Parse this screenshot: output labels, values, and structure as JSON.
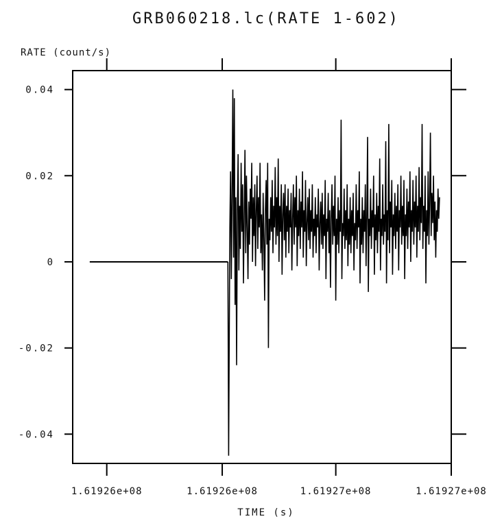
{
  "chart_data": {
    "type": "line",
    "title": "GRB060218.lc(RATE 1-602)",
    "xlabel": "TIME (s)",
    "ylabel": "RATE (count/s)",
    "x_tick_labels": [
      "1.61926e+08",
      "1.61926e+08",
      "1.61927e+08",
      "1.61927e+08"
    ],
    "x_tick_positions": [
      0.09,
      0.395,
      0.695,
      1.0
    ],
    "y_ticks": [
      -0.04,
      -0.02,
      0,
      0.02,
      0.04
    ],
    "y_tick_labels": [
      "-0.04",
      "-0.02",
      "0",
      "0.02",
      "0.04"
    ],
    "xlim": [
      0,
      1
    ],
    "ylim": [
      -0.0468,
      0.0444
    ],
    "grid": false,
    "line_color": "#000000",
    "series": [
      {
        "flat_segment": {
          "x": [
            0.045,
            0.41
          ],
          "y": [
            0,
            0
          ]
        },
        "points": [
          [
            0.41,
            0.0
          ],
          [
            0.412,
            -0.045
          ],
          [
            0.415,
            0.007
          ],
          [
            0.417,
            0.021
          ],
          [
            0.419,
            -0.004
          ],
          [
            0.421,
            0.016
          ],
          [
            0.423,
            0.04
          ],
          [
            0.425,
            0.001
          ],
          [
            0.427,
            0.038
          ],
          [
            0.429,
            -0.01
          ],
          [
            0.431,
            0.015
          ],
          [
            0.433,
            -0.024
          ],
          [
            0.435,
            0.012
          ],
          [
            0.437,
            0.025
          ],
          [
            0.439,
            -0.002
          ],
          [
            0.441,
            0.013
          ],
          [
            0.443,
            0.003
          ],
          [
            0.445,
            0.023
          ],
          [
            0.447,
            0.007
          ],
          [
            0.449,
            0.018
          ],
          [
            0.451,
            -0.005
          ],
          [
            0.453,
            0.011
          ],
          [
            0.455,
            0.026
          ],
          [
            0.457,
            0.002
          ],
          [
            0.459,
            0.02
          ],
          [
            0.461,
            0.008
          ],
          [
            0.463,
            -0.004
          ],
          [
            0.465,
            0.014
          ],
          [
            0.467,
            0.004
          ],
          [
            0.469,
            0.017
          ],
          [
            0.471,
            0.01
          ],
          [
            0.473,
            0.023
          ],
          [
            0.475,
            0.0
          ],
          [
            0.477,
            0.015
          ],
          [
            0.479,
            0.006
          ],
          [
            0.481,
            0.018
          ],
          [
            0.483,
            -0.001
          ],
          [
            0.485,
            0.012
          ],
          [
            0.487,
            0.02
          ],
          [
            0.489,
            0.003
          ],
          [
            0.491,
            0.015
          ],
          [
            0.493,
            0.008
          ],
          [
            0.495,
            0.023
          ],
          [
            0.497,
            0.002
          ],
          [
            0.499,
            0.011
          ],
          [
            0.501,
            -0.002
          ],
          [
            0.503,
            0.016
          ],
          [
            0.505,
            0.005
          ],
          [
            0.507,
            -0.009
          ],
          [
            0.509,
            0.012
          ],
          [
            0.511,
            0.019
          ],
          [
            0.513,
            0.004
          ],
          [
            0.515,
            0.023
          ],
          [
            0.517,
            -0.02
          ],
          [
            0.519,
            0.01
          ],
          [
            0.521,
            0.005
          ],
          [
            0.523,
            0.015
          ],
          [
            0.525,
            0.007
          ],
          [
            0.527,
            0.019
          ],
          [
            0.529,
            0.002
          ],
          [
            0.531,
            0.013
          ],
          [
            0.533,
            0.008
          ],
          [
            0.535,
            0.022
          ],
          [
            0.537,
            0.004
          ],
          [
            0.539,
            0.015
          ],
          [
            0.541,
            0.006
          ],
          [
            0.543,
            0.024
          ],
          [
            0.545,
            0.0
          ],
          [
            0.547,
            0.013
          ],
          [
            0.549,
            0.007
          ],
          [
            0.551,
            0.018
          ],
          [
            0.553,
            -0.003
          ],
          [
            0.555,
            0.011
          ],
          [
            0.557,
            0.016
          ],
          [
            0.559,
            0.005
          ],
          [
            0.561,
            0.018
          ],
          [
            0.563,
            0.001
          ],
          [
            0.565,
            0.013
          ],
          [
            0.567,
            0.007
          ],
          [
            0.569,
            0.017
          ],
          [
            0.571,
            0.002
          ],
          [
            0.573,
            0.012
          ],
          [
            0.575,
            0.008
          ],
          [
            0.577,
            0.016
          ],
          [
            0.579,
            -0.002
          ],
          [
            0.581,
            0.01
          ],
          [
            0.583,
            0.018
          ],
          [
            0.585,
            0.004
          ],
          [
            0.587,
            0.015
          ],
          [
            0.589,
            0.008
          ],
          [
            0.591,
            0.02
          ],
          [
            0.593,
            -0.001
          ],
          [
            0.595,
            0.012
          ],
          [
            0.597,
            0.006
          ],
          [
            0.599,
            0.017
          ],
          [
            0.601,
            0.003
          ],
          [
            0.603,
            0.014
          ],
          [
            0.605,
            0.008
          ],
          [
            0.607,
            0.021
          ],
          [
            0.609,
            0.001
          ],
          [
            0.611,
            0.012
          ],
          [
            0.613,
            0.007
          ],
          [
            0.615,
            0.019
          ],
          [
            0.617,
            -0.001
          ],
          [
            0.619,
            0.009
          ],
          [
            0.621,
            0.015
          ],
          [
            0.623,
            0.005
          ],
          [
            0.625,
            0.017
          ],
          [
            0.627,
            0.003
          ],
          [
            0.629,
            0.012
          ],
          [
            0.631,
            0.007
          ],
          [
            0.633,
            0.018
          ],
          [
            0.635,
            0.001
          ],
          [
            0.637,
            0.01
          ],
          [
            0.639,
            0.006
          ],
          [
            0.641,
            0.015
          ],
          [
            0.643,
            0.002
          ],
          [
            0.645,
            0.011
          ],
          [
            0.647,
            0.008
          ],
          [
            0.649,
            0.017
          ],
          [
            0.651,
            -0.002
          ],
          [
            0.653,
            0.009
          ],
          [
            0.655,
            0.014
          ],
          [
            0.657,
            0.004
          ],
          [
            0.659,
            0.016
          ],
          [
            0.661,
            0.003
          ],
          [
            0.663,
            0.011
          ],
          [
            0.665,
            0.006
          ],
          [
            0.667,
            0.019
          ],
          [
            0.669,
            -0.004
          ],
          [
            0.671,
            0.01
          ],
          [
            0.673,
            0.007
          ],
          [
            0.675,
            0.016
          ],
          [
            0.677,
            0.002
          ],
          [
            0.679,
            0.012
          ],
          [
            0.681,
            -0.006
          ],
          [
            0.683,
            0.01
          ],
          [
            0.685,
            0.018
          ],
          [
            0.687,
            0.004
          ],
          [
            0.689,
            0.013
          ],
          [
            0.691,
            0.006
          ],
          [
            0.693,
            0.02
          ],
          [
            0.695,
            -0.009
          ],
          [
            0.697,
            0.01
          ],
          [
            0.699,
            0.004
          ],
          [
            0.701,
            0.015
          ],
          [
            0.703,
            0.002
          ],
          [
            0.705,
            0.012
          ],
          [
            0.707,
            0.007
          ],
          [
            0.709,
            0.033
          ],
          [
            0.711,
            -0.004
          ],
          [
            0.713,
            0.009
          ],
          [
            0.715,
            0.006
          ],
          [
            0.717,
            0.017
          ],
          [
            0.719,
            0.003
          ],
          [
            0.721,
            0.012
          ],
          [
            0.723,
            0.005
          ],
          [
            0.725,
            0.018
          ],
          [
            0.727,
            -0.001
          ],
          [
            0.729,
            0.01
          ],
          [
            0.731,
            0.004
          ],
          [
            0.733,
            0.015
          ],
          [
            0.735,
            0.002
          ],
          [
            0.737,
            0.012
          ],
          [
            0.739,
            0.006
          ],
          [
            0.741,
            0.016
          ],
          [
            0.743,
            -0.002
          ],
          [
            0.745,
            0.009
          ],
          [
            0.747,
            0.005
          ],
          [
            0.749,
            0.018
          ],
          [
            0.751,
            0.003
          ],
          [
            0.753,
            0.012
          ],
          [
            0.755,
            0.008
          ],
          [
            0.757,
            0.021
          ],
          [
            0.759,
            -0.005
          ],
          [
            0.761,
            0.01
          ],
          [
            0.763,
            0.004
          ],
          [
            0.765,
            0.015
          ],
          [
            0.767,
            0.002
          ],
          [
            0.769,
            0.012
          ],
          [
            0.771,
            0.007
          ],
          [
            0.773,
            0.018
          ],
          [
            0.775,
            -0.001
          ],
          [
            0.777,
            0.011
          ],
          [
            0.779,
            0.029
          ],
          [
            0.781,
            -0.007
          ],
          [
            0.783,
            0.01
          ],
          [
            0.785,
            0.006
          ],
          [
            0.787,
            0.017
          ],
          [
            0.789,
            0.003
          ],
          [
            0.791,
            0.012
          ],
          [
            0.793,
            0.008
          ],
          [
            0.795,
            0.02
          ],
          [
            0.797,
            -0.003
          ],
          [
            0.799,
            0.011
          ],
          [
            0.801,
            0.005
          ],
          [
            0.803,
            0.016
          ],
          [
            0.805,
            0.002
          ],
          [
            0.807,
            0.013
          ],
          [
            0.809,
            0.007
          ],
          [
            0.811,
            0.024
          ],
          [
            0.813,
            -0.002
          ],
          [
            0.815,
            0.01
          ],
          [
            0.817,
            0.006
          ],
          [
            0.819,
            0.018
          ],
          [
            0.821,
            0.004
          ],
          [
            0.823,
            0.011
          ],
          [
            0.825,
            0.007
          ],
          [
            0.827,
            0.028
          ],
          [
            0.829,
            -0.005
          ],
          [
            0.831,
            0.012
          ],
          [
            0.833,
            0.005
          ],
          [
            0.835,
            0.032
          ],
          [
            0.837,
            0.002
          ],
          [
            0.839,
            0.014
          ],
          [
            0.841,
            0.008
          ],
          [
            0.843,
            0.019
          ],
          [
            0.845,
            -0.003
          ],
          [
            0.847,
            0.011
          ],
          [
            0.849,
            0.006
          ],
          [
            0.851,
            0.016
          ],
          [
            0.853,
            0.003
          ],
          [
            0.855,
            0.013
          ],
          [
            0.857,
            0.007
          ],
          [
            0.859,
            0.018
          ],
          [
            0.861,
            -0.002
          ],
          [
            0.863,
            0.012
          ],
          [
            0.865,
            0.008
          ],
          [
            0.867,
            0.02
          ],
          [
            0.869,
            0.004
          ],
          [
            0.871,
            0.013
          ],
          [
            0.873,
            0.006
          ],
          [
            0.875,
            0.019
          ],
          [
            0.877,
            -0.004
          ],
          [
            0.879,
            0.011
          ],
          [
            0.881,
            0.006
          ],
          [
            0.883,
            0.017
          ],
          [
            0.885,
            0.003
          ],
          [
            0.887,
            0.014
          ],
          [
            0.889,
            0.008
          ],
          [
            0.891,
            0.021
          ],
          [
            0.893,
            0.0
          ],
          [
            0.895,
            0.012
          ],
          [
            0.897,
            0.007
          ],
          [
            0.899,
            0.019
          ],
          [
            0.901,
            0.004
          ],
          [
            0.903,
            0.014
          ],
          [
            0.905,
            0.008
          ],
          [
            0.907,
            0.02
          ],
          [
            0.909,
            0.001
          ],
          [
            0.911,
            0.013
          ],
          [
            0.913,
            0.007
          ],
          [
            0.915,
            0.022
          ],
          [
            0.917,
            0.005
          ],
          [
            0.919,
            0.015
          ],
          [
            0.921,
            0.009
          ],
          [
            0.923,
            0.032
          ],
          [
            0.925,
            0.003
          ],
          [
            0.927,
            0.013
          ],
          [
            0.929,
            0.007
          ],
          [
            0.931,
            0.02
          ],
          [
            0.933,
            -0.005
          ],
          [
            0.935,
            0.012
          ],
          [
            0.937,
            0.006
          ],
          [
            0.939,
            0.021
          ],
          [
            0.941,
            0.004
          ],
          [
            0.943,
            0.014
          ],
          [
            0.945,
            0.03
          ],
          [
            0.947,
            0.006
          ],
          [
            0.949,
            0.016
          ],
          [
            0.951,
            0.009
          ],
          [
            0.953,
            0.02
          ],
          [
            0.955,
            0.005
          ],
          [
            0.957,
            0.014
          ],
          [
            0.959,
            0.001
          ],
          [
            0.961,
            0.012
          ],
          [
            0.963,
            0.007
          ],
          [
            0.965,
            0.017
          ],
          [
            0.967,
            0.01
          ],
          [
            0.969,
            0.015
          ]
        ]
      }
    ]
  }
}
